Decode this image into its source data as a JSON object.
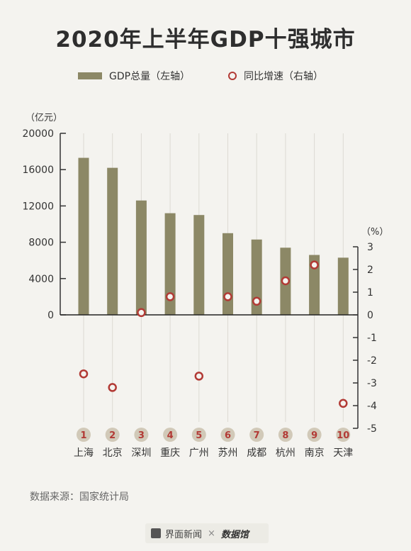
{
  "title": "2020年上半年GDP十强城市",
  "legend": {
    "gdp": "GDP总量（左轴）",
    "growth": "同比增速（右轴）"
  },
  "colors": {
    "bar": "#8c8866",
    "dot": "#b23a35",
    "badge": "#d1c9b8",
    "badge_text": "#b23a35"
  },
  "chart_data": {
    "type": "bar",
    "categories": [
      "上海",
      "北京",
      "深圳",
      "重庆",
      "广州",
      "苏州",
      "成都",
      "杭州",
      "南京",
      "天津"
    ],
    "ranks": [
      "1",
      "2",
      "3",
      "4",
      "5",
      "6",
      "7",
      "8",
      "9",
      "10"
    ],
    "series": [
      {
        "name": "GDP总量",
        "axis": "left",
        "type": "bar",
        "values": [
          17300,
          16200,
          12600,
          11200,
          11000,
          9000,
          8300,
          7400,
          6600,
          6300
        ]
      },
      {
        "name": "同比增速",
        "axis": "right",
        "type": "scatter",
        "values": [
          -2.6,
          -3.2,
          0.1,
          0.8,
          -2.7,
          0.8,
          0.6,
          1.5,
          2.2,
          -3.9
        ]
      }
    ],
    "left_axis": {
      "unit_label": "（亿元）",
      "ticks": [
        "20000",
        "16000",
        "12000",
        "8000",
        "4000",
        "0"
      ],
      "ylim": [
        0,
        20000
      ]
    },
    "right_axis": {
      "unit_label": "（%）",
      "ticks": [
        "3",
        "2",
        "1",
        "0",
        "-1",
        "-2",
        "-3",
        "-4",
        "-5"
      ],
      "ylim": [
        -5,
        3
      ]
    },
    "legend_position": "top"
  },
  "source": "数据来源：国家统计局",
  "footer": {
    "brand1": "界面新闻",
    "times": "×",
    "brand2": "数据馆"
  }
}
